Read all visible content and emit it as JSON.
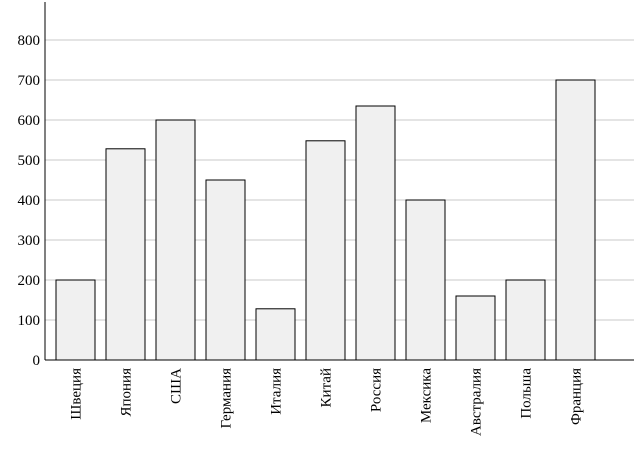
{
  "chart_data": {
    "type": "bar",
    "categories": [
      "Швеция",
      "Япония",
      "США",
      "Германия",
      "Италия",
      "Китай",
      "Россия",
      "Мексика",
      "Австралия",
      "Польша",
      "Франция"
    ],
    "values": [
      200,
      528,
      600,
      450,
      128,
      548,
      635,
      400,
      160,
      200,
      700
    ],
    "color": "#f0f0f0",
    "ylim": [
      0,
      895
    ],
    "yticks": [
      0,
      100,
      200,
      300,
      400,
      500,
      600,
      700,
      800
    ],
    "grid": true
  }
}
